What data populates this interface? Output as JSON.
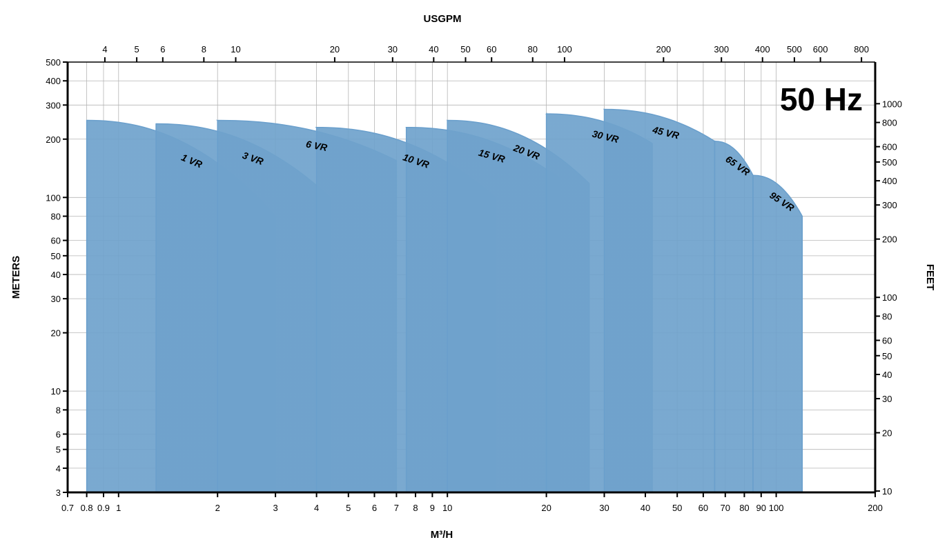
{
  "chart_data": {
    "type": "area",
    "title": "",
    "badge": "50 Hz",
    "xlabel": "M³/H",
    "x2label": "USGPM",
    "ylabel": "METERS",
    "y2label": "FEET",
    "xscale": "log",
    "yscale": "log",
    "xlim": [
      0.7,
      200
    ],
    "ylim": [
      3,
      500
    ],
    "grid": true,
    "x_ticks": [
      0.7,
      0.8,
      0.9,
      1,
      2,
      3,
      4,
      5,
      6,
      7,
      8,
      9,
      10,
      20,
      30,
      40,
      50,
      60,
      70,
      80,
      90,
      100,
      200
    ],
    "x_tick_labels": [
      "0.7",
      "0.8",
      "0.9",
      "1",
      "2",
      "3",
      "4",
      "5",
      "6",
      "7",
      "8",
      "9",
      "10",
      "20",
      "30",
      "40",
      "50",
      "60",
      "70",
      "80",
      "90",
      "100",
      "200"
    ],
    "x2_ticks": [
      4,
      5,
      6,
      8,
      10,
      20,
      30,
      40,
      50,
      60,
      80,
      100,
      200,
      300,
      400,
      500,
      600,
      800
    ],
    "x2_tick_labels": [
      "4",
      "5",
      "6",
      "8",
      "10",
      "20",
      "30",
      "40",
      "50",
      "60",
      "80",
      "100",
      "200",
      "300",
      "400",
      "500",
      "600",
      "800"
    ],
    "y_ticks": [
      3,
      4,
      5,
      6,
      8,
      10,
      20,
      30,
      40,
      50,
      60,
      80,
      100,
      200,
      300,
      400,
      500
    ],
    "y_tick_labels": [
      "3",
      "4",
      "5",
      "6",
      "8",
      "10",
      "20",
      "30",
      "40",
      "50",
      "60",
      "80",
      "100",
      "200",
      "300",
      "400",
      "500"
    ],
    "y2_ticks": [
      10,
      20,
      30,
      40,
      50,
      60,
      80,
      100,
      200,
      300,
      400,
      500,
      600,
      800,
      1000
    ],
    "y2_tick_labels": [
      "10",
      "20",
      "30",
      "40",
      "50",
      "60",
      "80",
      "100",
      "200",
      "300",
      "400",
      "500",
      "600",
      "800",
      "1000"
    ],
    "series": [
      {
        "name": "1 VR",
        "x_min": 0.8,
        "x_max": 3.0,
        "head_max": 250,
        "head_min": 80
      },
      {
        "name": "3 VR",
        "x_min": 1.3,
        "x_max": 4.4,
        "head_max": 240,
        "head_min": 100
      },
      {
        "name": "6 VR",
        "x_min": 2.0,
        "x_max": 7.0,
        "head_max": 250,
        "head_min": 155
      },
      {
        "name": "10 VR",
        "x_min": 4.0,
        "x_max": 14.0,
        "head_max": 230,
        "head_min": 100
      },
      {
        "name": "15 VR",
        "x_min": 7.5,
        "x_max": 22.0,
        "head_max": 230,
        "head_min": 125
      },
      {
        "name": "20 VR",
        "x_min": 10.0,
        "x_max": 27.0,
        "head_max": 250,
        "head_min": 118
      },
      {
        "name": "30 VR",
        "x_min": 20.0,
        "x_max": 42.0,
        "head_max": 270,
        "head_min": 190
      },
      {
        "name": "45 VR",
        "x_min": 30.0,
        "x_max": 65.0,
        "head_max": 285,
        "head_min": 195
      },
      {
        "name": "65 VR",
        "x_min": 65.0,
        "x_max": 85.0,
        "head_max": 195,
        "head_min": 130
      },
      {
        "name": "95 VR",
        "x_min": 85.0,
        "x_max": 120.0,
        "head_max": 130,
        "head_min": 80
      }
    ]
  }
}
